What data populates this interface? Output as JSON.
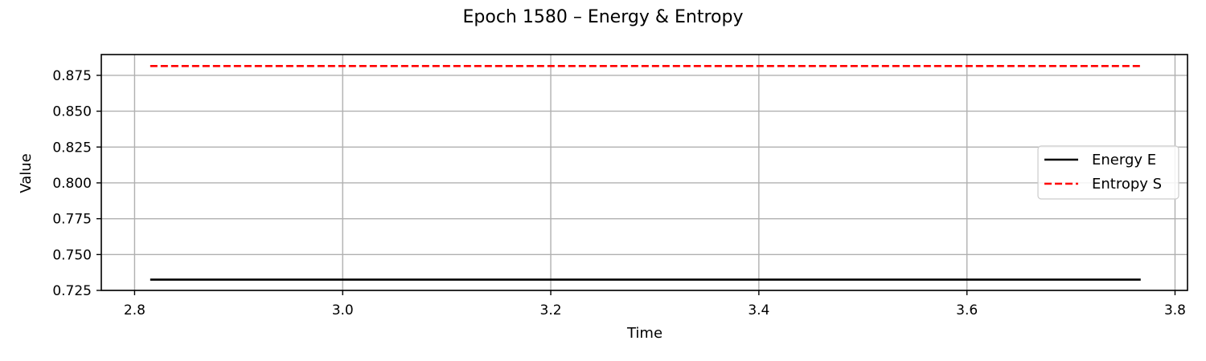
{
  "chart_data": {
    "type": "line",
    "title": "Epoch 1580 – Energy & Entropy",
    "xlabel": "Time",
    "ylabel": "Value",
    "xlim": [
      2.768,
      3.812
    ],
    "ylim": [
      0.725,
      0.8895
    ],
    "xticks": [
      2.8,
      3.0,
      3.2,
      3.4,
      3.6,
      3.8
    ],
    "xtick_labels": [
      "2.8",
      "3.0",
      "3.2",
      "3.4",
      "3.6",
      "3.8"
    ],
    "yticks": [
      0.725,
      0.75,
      0.775,
      0.8,
      0.825,
      0.85,
      0.875
    ],
    "ytick_labels": [
      "0.725",
      "0.750",
      "0.775",
      "0.800",
      "0.825",
      "0.850",
      "0.875"
    ],
    "grid": true,
    "legend_position": "center-right",
    "series": [
      {
        "name": "Energy E",
        "color": "#000000",
        "style": "solid",
        "x": [
          2.815,
          3.767
        ],
        "y": [
          0.7325,
          0.7325
        ]
      },
      {
        "name": "Entropy S",
        "color": "#ff0000",
        "style": "dashed",
        "x": [
          2.815,
          3.767
        ],
        "y": [
          0.8815,
          0.8815
        ]
      }
    ]
  }
}
